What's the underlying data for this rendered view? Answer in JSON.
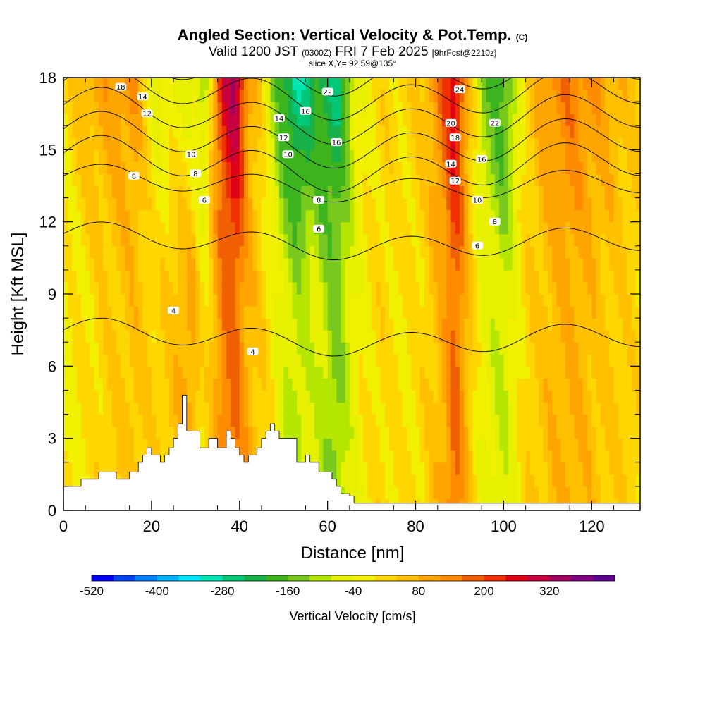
{
  "title": {
    "main": "Angled Section: Vertical Velocity & Pot.Temp.",
    "main_suffix": "(C)",
    "valid_prefix": "Valid 1200 JST",
    "valid_utc": "(0300Z)",
    "valid_date": "FRI 7 Feb 2025",
    "forecast": "[9hrFcst@2210z]",
    "slice": "slice X,Y= 92,59@135°"
  },
  "chart_data": {
    "type": "heatmap",
    "xlabel": "Distance [nm]",
    "ylabel": "Height [Kft MSL]",
    "xlim": [
      0,
      131
    ],
    "ylim": [
      0,
      18
    ],
    "x_ticks": [
      "0",
      "20",
      "40",
      "60",
      "80",
      "100",
      "120"
    ],
    "y_ticks": [
      "0",
      "3",
      "6",
      "9",
      "12",
      "15",
      "18"
    ],
    "colorbar": {
      "label": "Vertical Velocity [cm/s]",
      "tick_labels": [
        "-520",
        "-400",
        "-280",
        "-160",
        "-40",
        "80",
        "200",
        "320"
      ],
      "levels": [
        -520,
        -480,
        -440,
        -400,
        -360,
        -320,
        -280,
        -240,
        -200,
        -160,
        -120,
        -80,
        -40,
        0,
        40,
        80,
        120,
        160,
        200,
        240,
        280,
        320,
        360,
        400
      ],
      "colors": [
        "#0000ff",
        "#0044ff",
        "#0080ff",
        "#00b4ff",
        "#00e6ff",
        "#00e6b4",
        "#00c878",
        "#18b048",
        "#3cb41e",
        "#78c81e",
        "#b4e600",
        "#e6f000",
        "#f0f000",
        "#ffd700",
        "#ffc000",
        "#ffa500",
        "#ff8c00",
        "#f06000",
        "#f03000",
        "#e00018",
        "#c80040",
        "#a00060",
        "#800080",
        "#600090"
      ]
    },
    "velocity_field_cm_s": {
      "x": [
        0,
        10,
        16,
        21,
        25,
        29,
        32,
        36,
        39,
        42,
        46,
        50,
        53,
        57,
        62,
        67,
        72,
        78,
        82,
        86,
        89,
        92,
        95,
        100,
        105,
        110,
        115,
        120,
        125,
        131
      ],
      "base": [
        -20,
        30,
        60,
        20,
        60,
        100,
        0,
        140,
        180,
        80,
        20,
        -60,
        -100,
        -60,
        -140,
        -20,
        20,
        0,
        20,
        80,
        180,
        60,
        -40,
        -80,
        20,
        60,
        80,
        60,
        40,
        20
      ],
      "upper_enhancement": [
        40,
        80,
        60,
        -80,
        -100,
        -160,
        -120,
        120,
        160,
        40,
        -60,
        -160,
        -200,
        -160,
        -120,
        -20,
        0,
        20,
        40,
        100,
        120,
        20,
        -80,
        -120,
        0,
        60,
        80,
        60,
        40,
        20
      ]
    },
    "potential_temperature_contours_c": [
      4,
      6,
      8,
      10,
      12,
      14,
      16,
      18,
      20,
      22,
      24
    ],
    "contour_labels": [
      {
        "text": "18",
        "x": 13,
        "y": 17.6
      },
      {
        "text": "14",
        "x": 18,
        "y": 17.2
      },
      {
        "text": "12",
        "x": 19,
        "y": 16.5
      },
      {
        "text": "10",
        "x": 29,
        "y": 14.8
      },
      {
        "text": "8",
        "x": 30,
        "y": 14.0
      },
      {
        "text": "8",
        "x": 16,
        "y": 13.9
      },
      {
        "text": "6",
        "x": 32,
        "y": 12.9
      },
      {
        "text": "4",
        "x": 25,
        "y": 8.3
      },
      {
        "text": "4",
        "x": 43,
        "y": 6.6
      },
      {
        "text": "22",
        "x": 60,
        "y": 17.4
      },
      {
        "text": "16",
        "x": 55,
        "y": 16.6
      },
      {
        "text": "14",
        "x": 49,
        "y": 16.3
      },
      {
        "text": "12",
        "x": 50,
        "y": 15.5
      },
      {
        "text": "16",
        "x": 62,
        "y": 15.3
      },
      {
        "text": "10",
        "x": 51,
        "y": 14.8
      },
      {
        "text": "8",
        "x": 58,
        "y": 12.9
      },
      {
        "text": "6",
        "x": 58,
        "y": 11.7
      },
      {
        "text": "24",
        "x": 90,
        "y": 17.5
      },
      {
        "text": "20",
        "x": 88,
        "y": 16.1
      },
      {
        "text": "22",
        "x": 98,
        "y": 16.1
      },
      {
        "text": "18",
        "x": 89,
        "y": 15.5
      },
      {
        "text": "16",
        "x": 95,
        "y": 14.6
      },
      {
        "text": "14",
        "x": 88,
        "y": 14.4
      },
      {
        "text": "12",
        "x": 89,
        "y": 13.7
      },
      {
        "text": "10",
        "x": 94,
        "y": 12.9
      },
      {
        "text": "8",
        "x": 98,
        "y": 12.0
      },
      {
        "text": "6",
        "x": 94,
        "y": 11.0
      }
    ],
    "terrain_kft": {
      "x": [
        0,
        4,
        4,
        8,
        8,
        12,
        12,
        15,
        15,
        17,
        17,
        18,
        18,
        19,
        19,
        20,
        20,
        22,
        22,
        23,
        23,
        24,
        24,
        25,
        25,
        26,
        26,
        27,
        27,
        28,
        28,
        31,
        31,
        33,
        33,
        35,
        35,
        37,
        37,
        38,
        38,
        39,
        39,
        40,
        40,
        41,
        41,
        42,
        42,
        44,
        44,
        45,
        45,
        46,
        46,
        47,
        47,
        48,
        48,
        49,
        49,
        50,
        50,
        53,
        53,
        55,
        55,
        56,
        56,
        58,
        58,
        61,
        61,
        62,
        62,
        63,
        63,
        65,
        65,
        66,
        66,
        67,
        67,
        71,
        71,
        131
      ],
      "y": [
        1.0,
        1.0,
        1.3,
        1.3,
        1.6,
        1.6,
        1.3,
        1.3,
        1.6,
        1.6,
        2.0,
        2.0,
        2.3,
        2.3,
        2.6,
        2.6,
        2.3,
        2.3,
        2.0,
        2.0,
        2.3,
        2.3,
        2.6,
        2.6,
        3.0,
        3.0,
        3.6,
        3.6,
        4.8,
        4.8,
        3.3,
        3.3,
        2.6,
        2.6,
        3.0,
        3.0,
        2.6,
        2.6,
        3.3,
        3.3,
        3.0,
        3.0,
        2.6,
        2.6,
        2.3,
        2.3,
        2.0,
        2.0,
        2.3,
        2.3,
        2.6,
        2.6,
        3.0,
        3.0,
        3.3,
        3.3,
        3.6,
        3.6,
        3.3,
        3.3,
        3.0,
        3.0,
        3.0,
        3.0,
        2.0,
        2.0,
        2.3,
        2.3,
        2.0,
        2.0,
        1.6,
        1.6,
        1.3,
        1.3,
        1.0,
        1.0,
        0.7,
        0.7,
        0.6,
        0.6,
        0.3,
        0.3,
        0.3,
        0.3,
        0.3,
        0.3
      ]
    }
  }
}
